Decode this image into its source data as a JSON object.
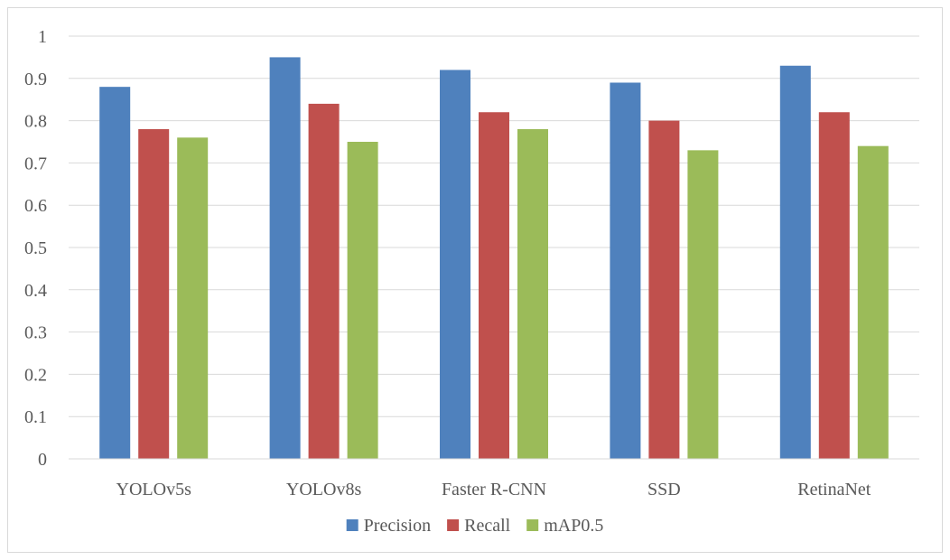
{
  "chart_data": {
    "type": "bar",
    "title": "",
    "xlabel": "",
    "ylabel": "",
    "categories": [
      "YOLOv5s",
      "YOLOv8s",
      "Faster R-CNN",
      "SSD",
      "RetinaNet"
    ],
    "series": [
      {
        "name": "Precision",
        "values": [
          0.88,
          0.95,
          0.92,
          0.89,
          0.93
        ],
        "color": "#4f81bd"
      },
      {
        "name": "Recall",
        "values": [
          0.78,
          0.84,
          0.82,
          0.8,
          0.82
        ],
        "color": "#c0504d"
      },
      {
        "name": "mAP0.5",
        "values": [
          0.76,
          0.75,
          0.78,
          0.73,
          0.74
        ],
        "color": "#9bbb59"
      }
    ],
    "ylim": [
      0,
      1
    ],
    "yticks": [
      "0",
      "0.1",
      "0.2",
      "0.3",
      "0.4",
      "0.5",
      "0.6",
      "0.7",
      "0.8",
      "0.9",
      "1"
    ],
    "grid": true,
    "legend_position": "bottom"
  }
}
